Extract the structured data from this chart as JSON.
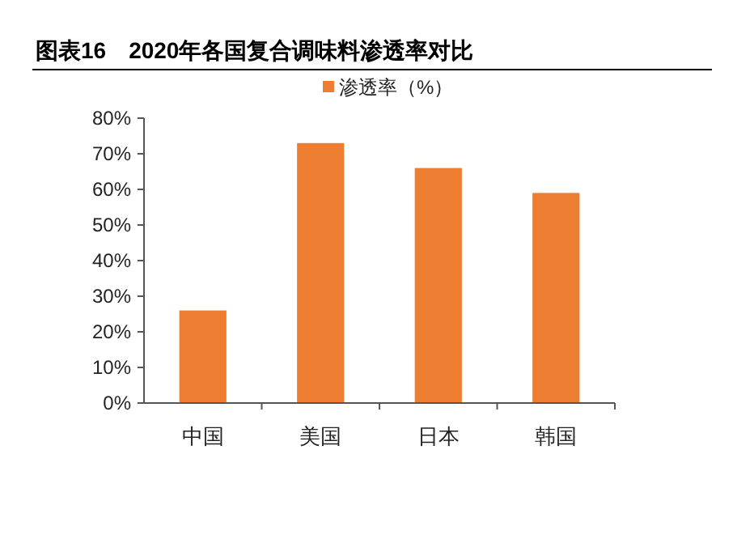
{
  "chart_data": {
    "type": "bar",
    "title": "图表16　2020年各国复合调味料渗透率对比",
    "categories": [
      "中国",
      "美国",
      "日本",
      "韩国"
    ],
    "series": [
      {
        "name": "渗透率（%）",
        "color": "#ed7d31",
        "values": [
          26,
          73,
          66,
          59
        ]
      }
    ],
    "ylim": [
      0,
      80
    ],
    "yticks": [
      {
        "value": 0,
        "label": "0%"
      },
      {
        "value": 10,
        "label": "10%"
      },
      {
        "value": 20,
        "label": "20%"
      },
      {
        "value": 30,
        "label": "30%"
      },
      {
        "value": 40,
        "label": "40%"
      },
      {
        "value": 50,
        "label": "50%"
      },
      {
        "value": 60,
        "label": "60%"
      },
      {
        "value": 70,
        "label": "70%"
      },
      {
        "value": 80,
        "label": "80%"
      }
    ],
    "grid": false,
    "legend": "top"
  }
}
